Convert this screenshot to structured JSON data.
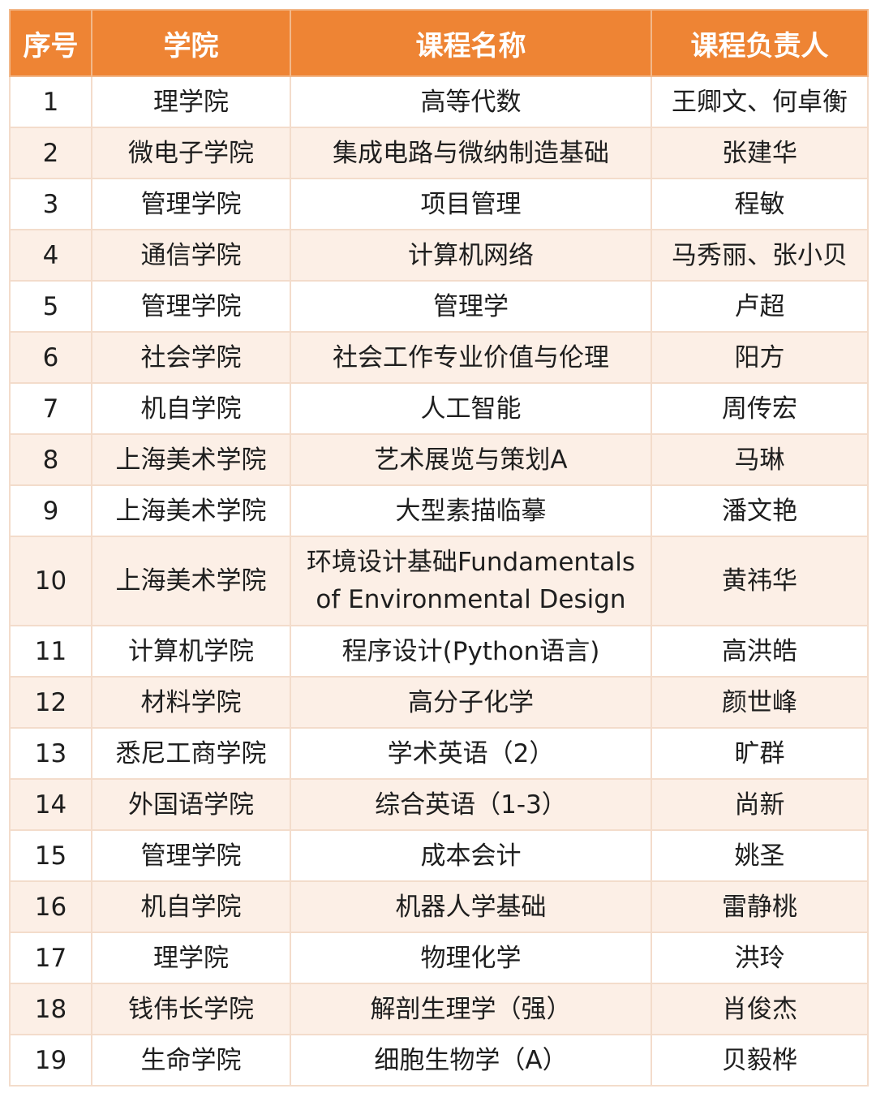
{
  "headers": [
    "序号",
    "学院",
    "课程名称",
    "课程负责人"
  ],
  "colors": {
    "header_bg": "#ee8434",
    "alt_row_bg": "#fcefe6"
  },
  "rows": [
    [
      "1",
      "理学院",
      "高等代数",
      "王卿文、何卓衡"
    ],
    [
      "2",
      "微电子学院",
      "集成电路与微纳制造基础",
      "张建华"
    ],
    [
      "3",
      "管理学院",
      "项目管理",
      "程敏"
    ],
    [
      "4",
      "通信学院",
      "计算机网络",
      "马秀丽、张小贝"
    ],
    [
      "5",
      "管理学院",
      "管理学",
      "卢超"
    ],
    [
      "6",
      "社会学院",
      "社会工作专业价值与伦理",
      "阳方"
    ],
    [
      "7",
      "机自学院",
      "人工智能",
      "周传宏"
    ],
    [
      "8",
      "上海美术学院",
      "艺术展览与策划A",
      "马琳"
    ],
    [
      "9",
      "上海美术学院",
      "大型素描临摹",
      "潘文艳"
    ],
    [
      "10",
      "上海美术学院",
      "环境设计基础Fundamentals of Environmental Design",
      "黄祎华"
    ],
    [
      "11",
      "计算机学院",
      "程序设计(Python语言)",
      "高洪皓"
    ],
    [
      "12",
      "材料学院",
      "高分子化学",
      "颜世峰"
    ],
    [
      "13",
      "悉尼工商学院",
      "学术英语（2）",
      "旷群"
    ],
    [
      "14",
      "外国语学院",
      "综合英语（1-3）",
      "尚新"
    ],
    [
      "15",
      "管理学院",
      "成本会计",
      "姚圣"
    ],
    [
      "16",
      "机自学院",
      "机器人学基础",
      "雷静桃"
    ],
    [
      "17",
      "理学院",
      "物理化学",
      "洪玲"
    ],
    [
      "18",
      "钱伟长学院",
      "解剖生理学（强）",
      "肖俊杰"
    ],
    [
      "19",
      "生命学院",
      "细胞生物学（A）",
      "贝毅桦"
    ]
  ]
}
